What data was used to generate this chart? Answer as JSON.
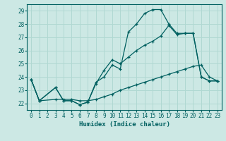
{
  "title": "",
  "xlabel": "Humidex (Indice chaleur)",
  "bg_color": "#cce8e4",
  "grid_color": "#b0d8d2",
  "line_color": "#006060",
  "xlim": [
    -0.5,
    23.5
  ],
  "ylim": [
    21.5,
    29.5
  ],
  "xticks": [
    0,
    1,
    2,
    3,
    4,
    5,
    6,
    7,
    8,
    9,
    10,
    11,
    12,
    13,
    14,
    15,
    16,
    17,
    18,
    19,
    20,
    21,
    22,
    23
  ],
  "yticks": [
    22,
    23,
    24,
    25,
    26,
    27,
    28,
    29
  ],
  "line1_x": [
    0,
    1,
    3,
    4,
    5,
    6,
    7,
    8,
    9,
    10,
    11,
    12,
    13,
    14,
    15,
    16,
    17,
    18,
    19,
    20,
    21,
    22,
    23
  ],
  "line1_y": [
    23.8,
    22.2,
    23.2,
    22.2,
    22.2,
    21.9,
    22.1,
    23.6,
    24.0,
    24.9,
    24.6,
    27.4,
    28.0,
    28.8,
    29.1,
    29.1,
    28.0,
    27.3,
    27.3,
    27.3,
    24.0,
    23.7,
    23.7
  ],
  "line2_x": [
    0,
    1,
    3,
    4,
    5,
    6,
    7,
    8,
    9,
    10,
    11,
    12,
    13,
    14,
    15,
    16,
    17,
    18,
    19,
    20,
    21,
    22,
    23
  ],
  "line2_y": [
    23.8,
    22.2,
    23.2,
    22.2,
    22.2,
    21.9,
    22.1,
    23.5,
    24.5,
    25.3,
    25.0,
    25.5,
    26.0,
    26.4,
    26.7,
    27.1,
    27.9,
    27.2,
    27.3,
    27.3,
    24.0,
    23.7,
    23.7
  ],
  "line3_x": [
    0,
    1,
    3,
    4,
    5,
    6,
    7,
    8,
    9,
    10,
    11,
    12,
    13,
    14,
    15,
    16,
    17,
    18,
    19,
    20,
    21,
    22,
    23
  ],
  "line3_y": [
    23.8,
    22.2,
    22.3,
    22.3,
    22.3,
    22.2,
    22.2,
    22.3,
    22.5,
    22.7,
    23.0,
    23.2,
    23.4,
    23.6,
    23.8,
    24.0,
    24.2,
    24.4,
    24.6,
    24.8,
    24.9,
    24.0,
    23.7
  ]
}
